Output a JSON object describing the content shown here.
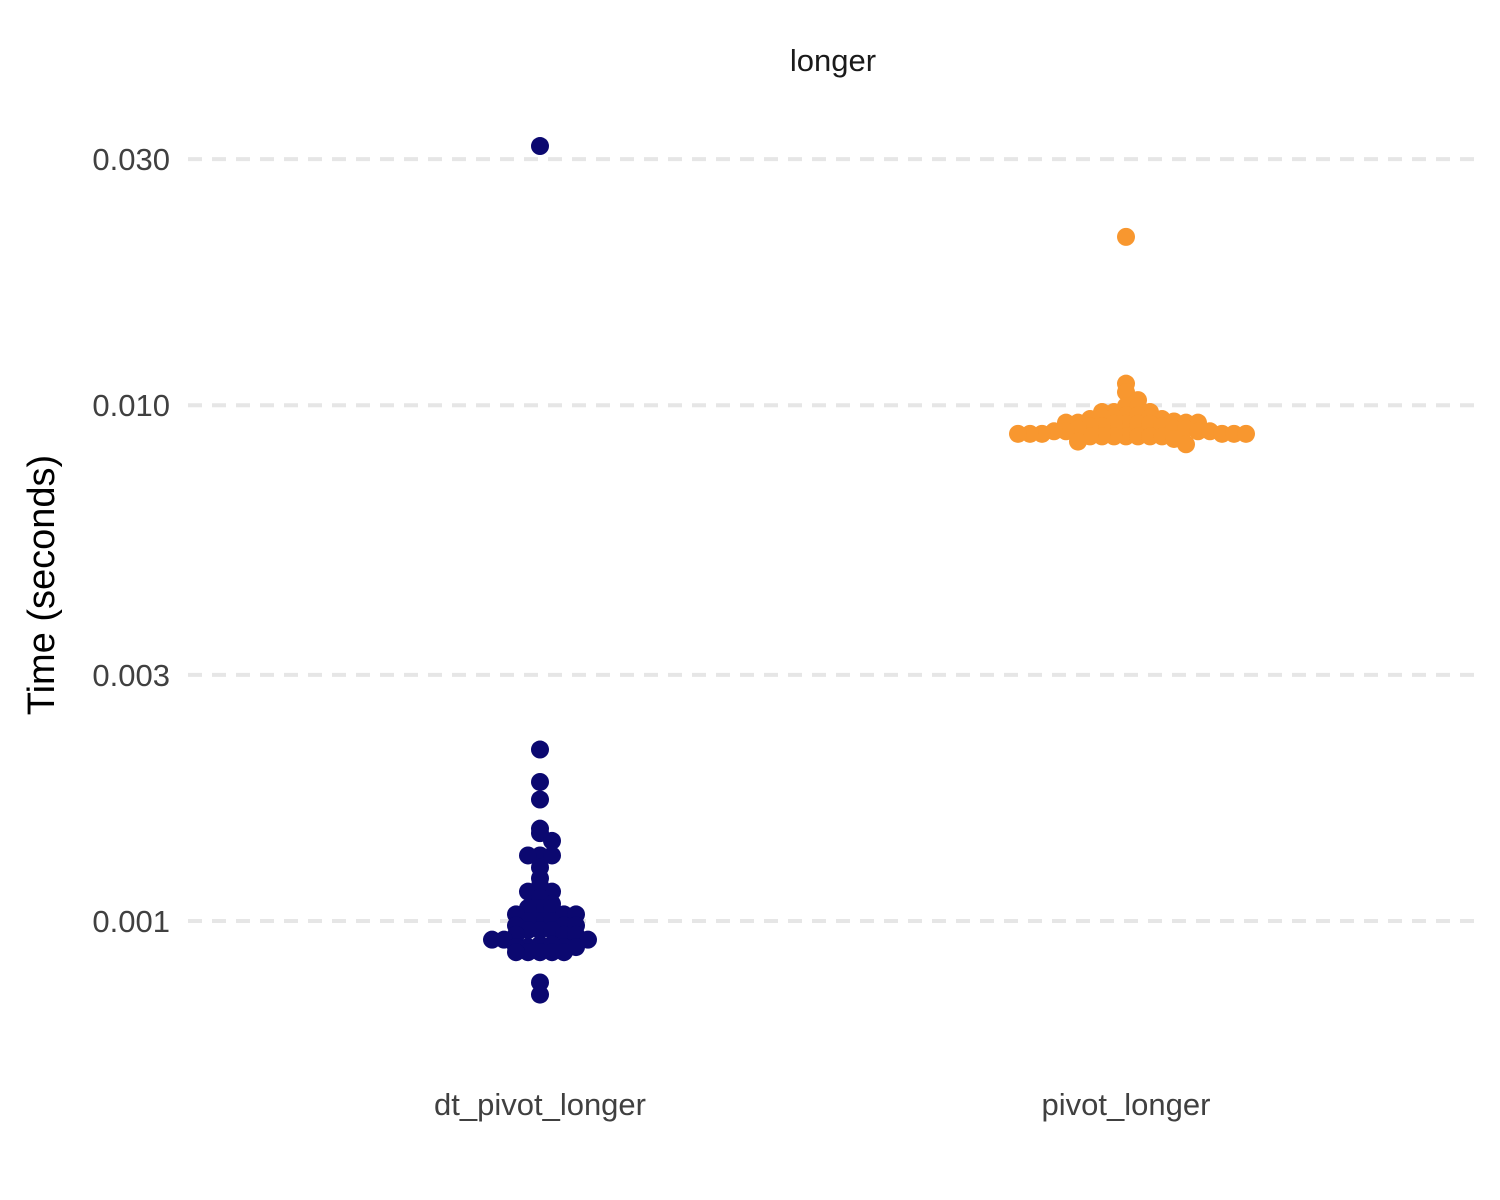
{
  "chart_data": {
    "type": "scatter",
    "title": "longer",
    "xlabel": "",
    "ylabel": "Time (seconds)",
    "y_scale": "log10",
    "ylim": [
      0.00063,
      0.036
    ],
    "y_ticks": [
      "0.001",
      "0.003",
      "0.010",
      "0.030"
    ],
    "grid": "horizontal dashed",
    "legend": "none",
    "categories": [
      "dt_pivot_longer",
      "pivot_longer"
    ],
    "series": [
      {
        "category": "dt_pivot_longer",
        "color": "#0b0870",
        "values": [
          0.0318,
          0.00215,
          0.00186,
          0.00172,
          0.00151,
          0.00148,
          0.00143,
          0.00134,
          0.00134,
          0.00134,
          0.00127,
          0.00121,
          0.00117,
          0.00114,
          0.00114,
          0.00111,
          0.00108,
          0.00106,
          0.00106,
          0.00106,
          0.00103,
          0.00103,
          0.00103,
          0.001,
          0.001,
          0.001,
          0.00098,
          0.00098,
          0.00098,
          0.00096,
          0.00096,
          0.00096,
          0.00094,
          0.00094,
          0.00094,
          0.00092,
          0.00092,
          0.00092,
          0.0009,
          0.0009,
          0.00089,
          0.00089,
          0.00089,
          0.00089,
          0.00087,
          0.00087,
          0.00087,
          0.00087,
          0.00087,
          0.00076,
          0.00072
        ]
      },
      {
        "category": "pivot_longer",
        "color": "#f8972f",
        "values": [
          0.0212,
          0.01101,
          0.0106,
          0.01023,
          0.00996,
          0.00993,
          0.0097,
          0.0097,
          0.0097,
          0.00955,
          0.00955,
          0.00948,
          0.00948,
          0.00948,
          0.0094,
          0.0094,
          0.0093,
          0.00925,
          0.00925,
          0.00925,
          0.00925,
          0.0092,
          0.0092,
          0.0092,
          0.0092,
          0.0091,
          0.0091,
          0.0091,
          0.009,
          0.009,
          0.009,
          0.0089,
          0.0089,
          0.0089,
          0.0089,
          0.0088,
          0.0088,
          0.0088,
          0.0088,
          0.0088,
          0.0088,
          0.0087,
          0.0087,
          0.0087,
          0.0087,
          0.0087,
          0.0087,
          0.0087,
          0.0086,
          0.0085,
          0.0084
        ]
      }
    ]
  }
}
